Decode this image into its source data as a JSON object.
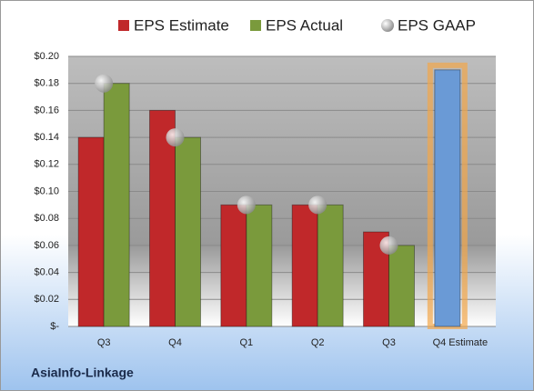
{
  "chart_data": {
    "type": "bar",
    "categories": [
      "Q3",
      "Q4",
      "Q1",
      "Q2",
      "Q3",
      "Q4 Estimate"
    ],
    "series": [
      {
        "name": "EPS Estimate",
        "color": "#c0282a",
        "values": [
          0.14,
          0.16,
          0.09,
          0.09,
          0.07,
          null
        ]
      },
      {
        "name": "EPS Actual",
        "color": "#7a9a3c",
        "values": [
          0.18,
          0.14,
          0.09,
          0.09,
          0.06,
          null
        ]
      },
      {
        "name": "EPS GAAP",
        "color": "#a9a9a9",
        "values": [
          0.18,
          0.14,
          0.09,
          0.09,
          0.06,
          null
        ]
      }
    ],
    "forecast": {
      "color": "#6a9ad6",
      "values": [
        null,
        null,
        null,
        null,
        null,
        0.19
      ]
    },
    "ylim": [
      0,
      0.2
    ],
    "yticks": [
      {
        "value": 0,
        "label": "$-"
      },
      {
        "value": 0.02,
        "label": "$0.02"
      },
      {
        "value": 0.04,
        "label": "$0.04"
      },
      {
        "value": 0.06,
        "label": "$0.06"
      },
      {
        "value": 0.08,
        "label": "$0.08"
      },
      {
        "value": 0.1,
        "label": "$0.10"
      },
      {
        "value": 0.12,
        "label": "$0.12"
      },
      {
        "value": 0.14,
        "label": "$0.14"
      },
      {
        "value": 0.16,
        "label": "$0.16"
      },
      {
        "value": 0.18,
        "label": "$0.18"
      },
      {
        "value": 0.2,
        "label": "$0.20"
      }
    ],
    "grid": true,
    "footer": "AsiaInfo-Linkage"
  }
}
